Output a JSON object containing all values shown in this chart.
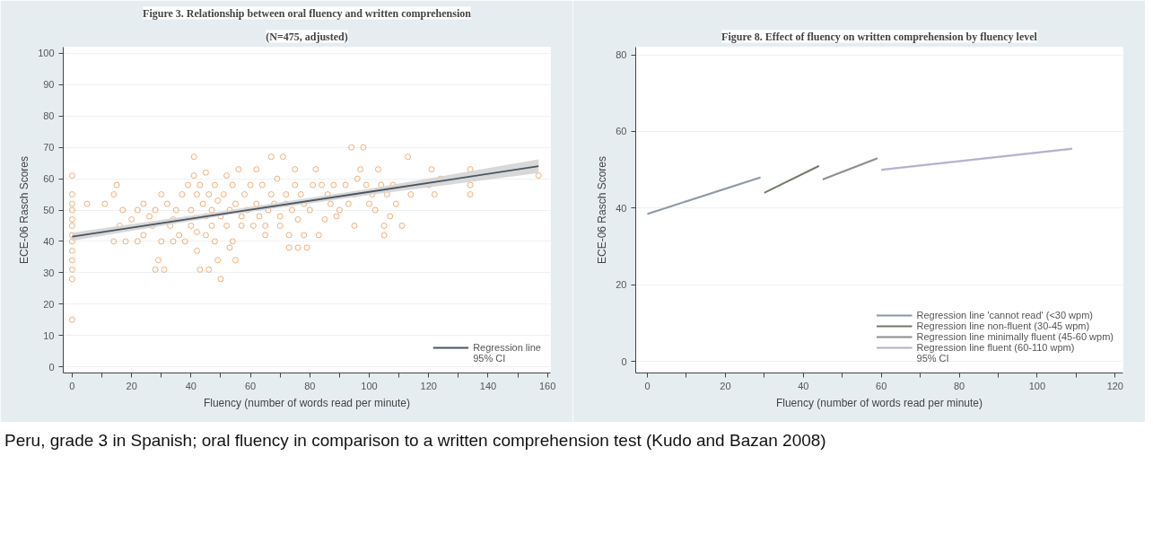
{
  "chart_data": [
    {
      "type": "scatter",
      "title": "Figure 3. Relationship between oral fluency and written comprehension",
      "subtitle": "(N=475, adjusted)",
      "xlabel": "Fluency (number of words read per minute)",
      "ylabel": "ECE-06 Rasch Scores",
      "xlim": [
        -3,
        161
      ],
      "ylim": [
        -2,
        102
      ],
      "xticks": [
        0,
        {
          "value": 10,
          "label": null
        },
        20,
        {
          "value": 30,
          "label": null
        },
        40,
        {
          "value": 50,
          "label": null
        },
        60,
        {
          "value": 70,
          "label": null
        },
        80,
        {
          "value": 90,
          "label": null
        },
        100,
        {
          "value": 110,
          "label": null
        },
        120,
        {
          "value": 130,
          "label": null
        },
        140,
        {
          "value": 150,
          "label": null
        },
        160
      ],
      "yticks": [
        0,
        10,
        20,
        30,
        40,
        50,
        60,
        70,
        80,
        90,
        100
      ],
      "grid": "y",
      "legend": "bottom right",
      "annotations": [
        "95% CI"
      ],
      "series": [
        {
          "type": "scatter",
          "marker": "circle",
          "color": "#f0a060",
          "x": [
            0,
            0,
            0,
            0,
            0,
            0,
            0,
            0,
            0,
            0,
            0,
            0,
            0,
            5,
            11,
            14,
            15,
            17,
            16,
            14,
            18,
            20,
            22,
            22,
            24,
            24,
            26,
            27,
            28,
            29,
            28,
            30,
            30,
            31,
            32,
            33,
            34,
            34,
            35,
            36,
            37,
            38,
            39,
            40,
            40,
            41,
            41,
            42,
            42,
            42,
            43,
            43,
            44,
            45,
            45,
            45,
            46,
            46,
            47,
            47,
            48,
            48,
            49,
            49,
            50,
            50,
            51,
            52,
            52,
            53,
            53,
            54,
            54,
            55,
            55,
            56,
            57,
            57,
            58,
            59,
            60,
            61,
            62,
            62,
            63,
            64,
            65,
            65,
            66,
            67,
            67,
            68,
            69,
            70,
            70,
            71,
            72,
            72,
            73,
            73,
            74,
            75,
            75,
            76,
            76,
            77,
            78,
            78,
            79,
            80,
            81,
            82,
            83,
            84,
            85,
            86,
            87,
            88,
            89,
            90,
            92,
            93,
            94,
            95,
            95,
            96,
            97,
            98,
            99,
            100,
            101,
            102,
            103,
            104,
            105,
            105,
            106,
            107,
            108,
            109,
            111,
            113,
            114,
            120,
            121,
            122,
            124,
            134,
            134,
            134,
            157
          ],
          "values": [
            61,
            55,
            52,
            50,
            47,
            45,
            42,
            40,
            37,
            34,
            31,
            28,
            15,
            52,
            52,
            55,
            58,
            50,
            45,
            40,
            40,
            47,
            50,
            40,
            42,
            52,
            48,
            45,
            50,
            34,
            31,
            55,
            40,
            31,
            52,
            45,
            47,
            40,
            50,
            42,
            55,
            40,
            58,
            50,
            45,
            61,
            67,
            55,
            43,
            37,
            58,
            31,
            52,
            48,
            62,
            42,
            55,
            31,
            50,
            45,
            58,
            40,
            53,
            34,
            48,
            28,
            55,
            61,
            45,
            50,
            38,
            40,
            58,
            52,
            34,
            63,
            48,
            45,
            55,
            50,
            58,
            45,
            63,
            52,
            48,
            58,
            42,
            45,
            50,
            55,
            67,
            52,
            60,
            48,
            45,
            67,
            55,
            52,
            42,
            38,
            50,
            58,
            63,
            47,
            38,
            55,
            52,
            42,
            38,
            50,
            58,
            63,
            42,
            58,
            47,
            55,
            52,
            58,
            48,
            50,
            58,
            52,
            70,
            45,
            55,
            60,
            63,
            70,
            58,
            52,
            55,
            50,
            63,
            58,
            45,
            42,
            55,
            48,
            58,
            52,
            45,
            67,
            55,
            58,
            63,
            55,
            60,
            63,
            58,
            55,
            61
          ]
        },
        {
          "type": "line",
          "name": "Regression line",
          "color": "#4a5560",
          "x": [
            0,
            50,
            100,
            157
          ],
          "values": [
            41.5,
            48.7,
            55.8,
            64
          ],
          "lower": [
            40.2,
            48.1,
            54.8,
            61.8
          ],
          "upper": [
            42.8,
            49.6,
            56.8,
            66.2
          ]
        }
      ]
    },
    {
      "type": "line",
      "title": "Figure 8. Effect of fluency on written comprehension by fluency level",
      "xlabel": "Fluency (number of words read per minute)",
      "ylabel": "ECE-06 Rasch Scores",
      "xlim": [
        -3,
        122
      ],
      "ylim": [
        -3,
        82
      ],
      "xticks": [
        0,
        {
          "value": 10,
          "label": null
        },
        20,
        {
          "value": 30,
          "label": null
        },
        40,
        {
          "value": 50,
          "label": null
        },
        60,
        {
          "value": 70,
          "label": null
        },
        80,
        {
          "value": 90,
          "label": null
        },
        100,
        {
          "value": 110,
          "label": null
        },
        120
      ],
      "yticks": [
        0,
        20,
        40,
        60,
        80
      ],
      "grid": "y",
      "legend": "bottom right",
      "annotations": [
        "95% CI",
        "Peru, grade 3 in Spanish; oral fluency in comparison to a written comprehension test (Kudo and Bazan 2008)"
      ],
      "series": [
        {
          "name": "Regression line 'cannot read' (<30 wpm)",
          "color": "#8a96a8",
          "x": [
            0,
            29
          ],
          "values": [
            38.5,
            48
          ],
          "lower": [
            38.2,
            47.7
          ],
          "upper": [
            38.8,
            48.3
          ]
        },
        {
          "name": "Regression line non-fluent (30-45 wpm)",
          "color": "#6e7868",
          "x": [
            30,
            44
          ],
          "values": [
            44,
            51
          ],
          "lower": [
            43.7,
            50.7
          ],
          "upper": [
            44.3,
            51.3
          ]
        },
        {
          "name": "Regression line minimally fluent (45-60 wpm)",
          "color": "#8c8c8c",
          "x": [
            45,
            59
          ],
          "values": [
            47.5,
            53
          ],
          "lower": [
            47.2,
            52.7
          ],
          "upper": [
            47.8,
            53.3
          ]
        },
        {
          "name": "Regression line fluent (60-110 wpm)",
          "color": "#b4acd4",
          "x": [
            60,
            109
          ],
          "values": [
            50,
            55.5
          ],
          "lower": [
            49.7,
            55.2
          ],
          "upper": [
            50.3,
            55.8
          ]
        }
      ]
    }
  ]
}
